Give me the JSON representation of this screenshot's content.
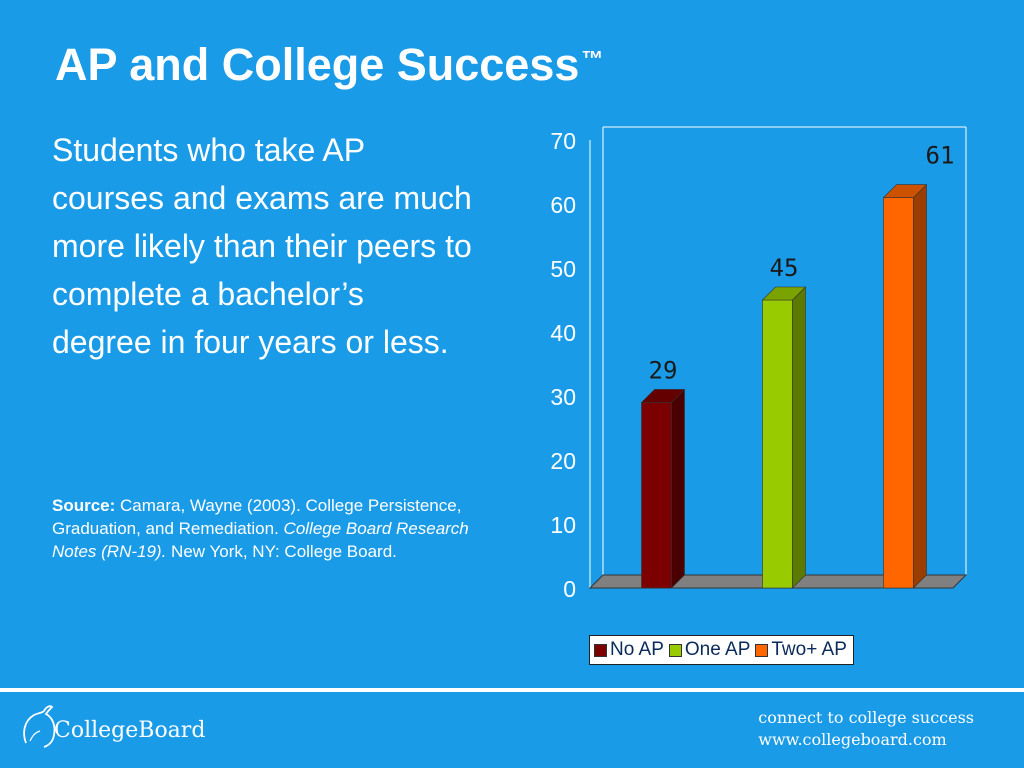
{
  "slide": {
    "title": "AP and College Success",
    "title_mark": "™",
    "body": "Students who take AP courses and exams are much more likely than their peers to complete a bachelor’s degree in four years or less.",
    "source_label": "Source:",
    "source_text_1": " Camara, Wayne (2003). College Persistence, Graduation, and Remediation. ",
    "source_italic": "College Board Research Notes (RN-19).",
    "source_text_2": " New York, NY: College Board."
  },
  "footer": {
    "logo_text": "CollegeBoard",
    "tagline_1": "connect to college success",
    "tagline_2": "www.collegeboard.com"
  },
  "chart_data": {
    "type": "bar",
    "categories": [
      "No AP",
      "One AP",
      "Two+ AP"
    ],
    "values": [
      29,
      45,
      61
    ],
    "colors": [
      "#7d0000",
      "#99cc00",
      "#ff6600"
    ],
    "ylim": [
      0,
      70
    ],
    "yticks": [
      0,
      10,
      20,
      30,
      40,
      50,
      60,
      70
    ],
    "title": "",
    "xlabel": "",
    "ylabel": "",
    "legend": "bottom",
    "grid": false,
    "style": "3d"
  }
}
